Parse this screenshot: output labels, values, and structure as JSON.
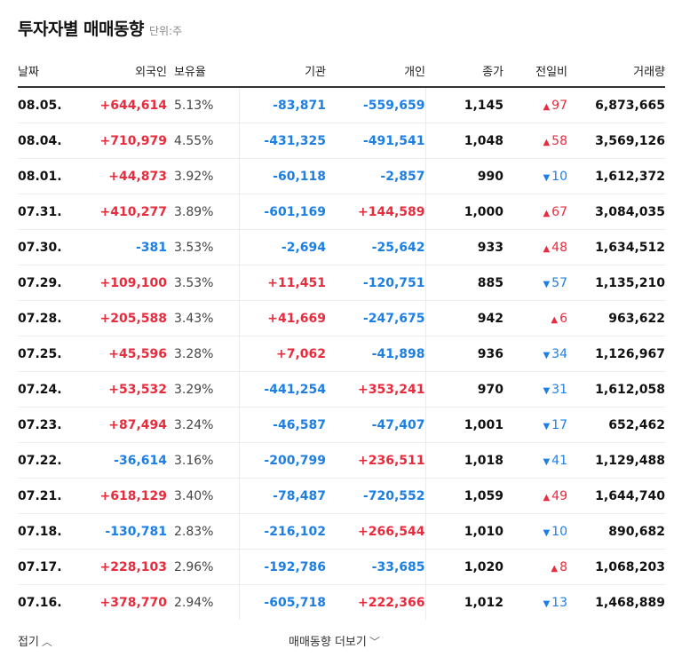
{
  "header": {
    "title": "투자자별 매매동향",
    "unit": "단위:주"
  },
  "columns": {
    "date": "날짜",
    "foreign": "외국인",
    "holding": "보유율",
    "institution": "기관",
    "individual": "개인",
    "close": "종가",
    "change": "전일비",
    "volume": "거래량"
  },
  "rows": [
    {
      "date": "08.05.",
      "foreign": "+644,614",
      "holding": "5.13%",
      "institution": "-83,871",
      "individual": "-559,659",
      "close": "1,145",
      "change": "97",
      "dir": "up",
      "volume": "6,873,665"
    },
    {
      "date": "08.04.",
      "foreign": "+710,979",
      "holding": "4.55%",
      "institution": "-431,325",
      "individual": "-491,541",
      "close": "1,048",
      "change": "58",
      "dir": "up",
      "volume": "3,569,126"
    },
    {
      "date": "08.01.",
      "foreign": "+44,873",
      "holding": "3.92%",
      "institution": "-60,118",
      "individual": "-2,857",
      "close": "990",
      "change": "10",
      "dir": "down",
      "volume": "1,612,372"
    },
    {
      "date": "07.31.",
      "foreign": "+410,277",
      "holding": "3.89%",
      "institution": "-601,169",
      "individual": "+144,589",
      "close": "1,000",
      "change": "67",
      "dir": "up",
      "volume": "3,084,035"
    },
    {
      "date": "07.30.",
      "foreign": "-381",
      "holding": "3.53%",
      "institution": "-2,694",
      "individual": "-25,642",
      "close": "933",
      "change": "48",
      "dir": "up",
      "volume": "1,634,512"
    },
    {
      "date": "07.29.",
      "foreign": "+109,100",
      "holding": "3.53%",
      "institution": "+11,451",
      "individual": "-120,751",
      "close": "885",
      "change": "57",
      "dir": "down",
      "volume": "1,135,210"
    },
    {
      "date": "07.28.",
      "foreign": "+205,588",
      "holding": "3.43%",
      "institution": "+41,669",
      "individual": "-247,675",
      "close": "942",
      "change": "6",
      "dir": "up",
      "volume": "963,622"
    },
    {
      "date": "07.25.",
      "foreign": "+45,596",
      "holding": "3.28%",
      "institution": "+7,062",
      "individual": "-41,898",
      "close": "936",
      "change": "34",
      "dir": "down",
      "volume": "1,126,967"
    },
    {
      "date": "07.24.",
      "foreign": "+53,532",
      "holding": "3.29%",
      "institution": "-441,254",
      "individual": "+353,241",
      "close": "970",
      "change": "31",
      "dir": "down",
      "volume": "1,612,058"
    },
    {
      "date": "07.23.",
      "foreign": "+87,494",
      "holding": "3.24%",
      "institution": "-46,587",
      "individual": "-47,407",
      "close": "1,001",
      "change": "17",
      "dir": "down",
      "volume": "652,462"
    },
    {
      "date": "07.22.",
      "foreign": "-36,614",
      "holding": "3.16%",
      "institution": "-200,799",
      "individual": "+236,511",
      "close": "1,018",
      "change": "41",
      "dir": "down",
      "volume": "1,129,488"
    },
    {
      "date": "07.21.",
      "foreign": "+618,129",
      "holding": "3.40%",
      "institution": "-78,487",
      "individual": "-720,552",
      "close": "1,059",
      "change": "49",
      "dir": "up",
      "volume": "1,644,740"
    },
    {
      "date": "07.18.",
      "foreign": "-130,781",
      "holding": "2.83%",
      "institution": "-216,102",
      "individual": "+266,544",
      "close": "1,010",
      "change": "10",
      "dir": "down",
      "volume": "890,682"
    },
    {
      "date": "07.17.",
      "foreign": "+228,103",
      "holding": "2.96%",
      "institution": "-192,786",
      "individual": "-33,685",
      "close": "1,020",
      "change": "8",
      "dir": "up",
      "volume": "1,068,203"
    },
    {
      "date": "07.16.",
      "foreign": "+378,770",
      "holding": "2.94%",
      "institution": "-605,718",
      "individual": "+222,366",
      "close": "1,012",
      "change": "13",
      "dir": "down",
      "volume": "1,468,889"
    }
  ],
  "footer": {
    "fold": "접기",
    "more": "매매동향 더보기"
  },
  "colors": {
    "up": "#e62c3d",
    "down": "#1e7fe3"
  }
}
